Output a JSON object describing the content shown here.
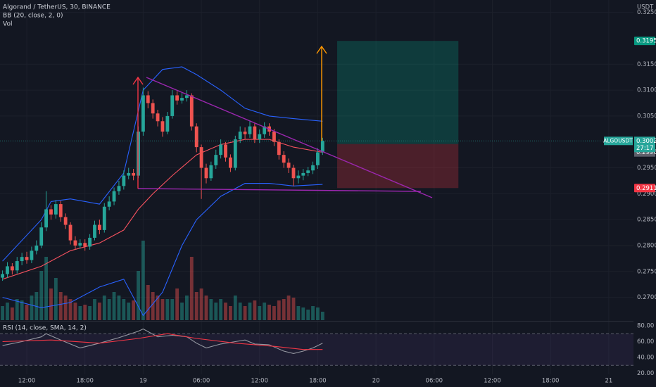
{
  "chart_data": [
    {
      "type": "candlestick",
      "title": "Algorand / TetherUS, 30, BINANCE",
      "indicators": [
        "BB (20, close, 2, 0)",
        "Vol"
      ],
      "y_label": "USDT",
      "x": [
        0,
        1,
        2,
        3,
        4,
        5,
        6,
        7,
        8,
        9,
        10,
        11,
        12,
        13,
        14,
        15,
        16,
        17,
        18,
        19,
        20,
        21,
        22,
        23,
        24,
        25,
        26,
        27,
        28,
        29,
        30,
        31,
        32,
        33,
        34,
        35,
        36,
        37,
        38,
        39,
        40,
        41,
        42,
        43,
        44,
        45,
        46,
        47,
        48,
        49,
        50,
        51,
        52,
        53,
        54,
        55,
        56,
        57,
        58,
        59,
        60,
        61,
        62,
        63,
        64,
        65,
        66
      ],
      "open": [
        0.2738,
        0.2745,
        0.276,
        0.2752,
        0.277,
        0.2778,
        0.2772,
        0.279,
        0.28,
        0.2835,
        0.287,
        0.286,
        0.288,
        0.2855,
        0.284,
        0.281,
        0.28,
        0.2805,
        0.2798,
        0.2815,
        0.284,
        0.283,
        0.2875,
        0.2885,
        0.2905,
        0.2915,
        0.2935,
        0.294,
        0.2935,
        0.302,
        0.309,
        0.3075,
        0.3055,
        0.304,
        0.302,
        0.305,
        0.309,
        0.308,
        0.3085,
        0.309,
        0.303,
        0.299,
        0.295,
        0.293,
        0.2955,
        0.2975,
        0.2995,
        0.297,
        0.295,
        0.3005,
        0.302,
        0.3015,
        0.303,
        0.3005,
        0.3015,
        0.303,
        0.302,
        0.3,
        0.2975,
        0.296,
        0.295,
        0.293,
        0.2935,
        0.294,
        0.2945,
        0.2955,
        0.298
      ],
      "high": [
        0.2752,
        0.2768,
        0.2766,
        0.2778,
        0.2786,
        0.2788,
        0.2798,
        0.281,
        0.2845,
        0.2905,
        0.2878,
        0.2888,
        0.2886,
        0.2862,
        0.2845,
        0.2818,
        0.2812,
        0.2812,
        0.2822,
        0.2848,
        0.285,
        0.2882,
        0.2895,
        0.2912,
        0.2925,
        0.2945,
        0.295,
        0.2948,
        0.303,
        0.3105,
        0.3098,
        0.3082,
        0.3062,
        0.3048,
        0.3058,
        0.31,
        0.3098,
        0.3095,
        0.31,
        0.3094,
        0.3036,
        0.2995,
        0.2958,
        0.2962,
        0.2985,
        0.3005,
        0.3,
        0.2976,
        0.3012,
        0.303,
        0.3028,
        0.304,
        0.3036,
        0.3024,
        0.3038,
        0.3036,
        0.3025,
        0.3005,
        0.2982,
        0.2968,
        0.2956,
        0.2945,
        0.2948,
        0.2952,
        0.2962,
        0.2988,
        0.3008
      ],
      "low": [
        0.2732,
        0.2738,
        0.2744,
        0.2746,
        0.2762,
        0.2765,
        0.2766,
        0.2783,
        0.2795,
        0.2828,
        0.285,
        0.2852,
        0.2846,
        0.2832,
        0.2802,
        0.2792,
        0.2794,
        0.279,
        0.2792,
        0.281,
        0.2822,
        0.2825,
        0.2868,
        0.2878,
        0.2898,
        0.2908,
        0.2928,
        0.2926,
        0.293,
        0.3012,
        0.3065,
        0.3045,
        0.303,
        0.301,
        0.3015,
        0.3045,
        0.3072,
        0.3074,
        0.3078,
        0.3022,
        0.298,
        0.289,
        0.292,
        0.2925,
        0.2948,
        0.2968,
        0.2962,
        0.2942,
        0.2945,
        0.2998,
        0.3006,
        0.3008,
        0.2998,
        0.2998,
        0.3008,
        0.3012,
        0.2992,
        0.2966,
        0.295,
        0.294,
        0.2915,
        0.292,
        0.2926,
        0.2934,
        0.2938,
        0.2948,
        0.2975
      ],
      "close": [
        0.2745,
        0.276,
        0.2752,
        0.277,
        0.2778,
        0.2772,
        0.279,
        0.28,
        0.2835,
        0.287,
        0.286,
        0.288,
        0.2855,
        0.284,
        0.281,
        0.28,
        0.2805,
        0.2798,
        0.2815,
        0.284,
        0.283,
        0.2875,
        0.2885,
        0.2905,
        0.2915,
        0.2935,
        0.294,
        0.2935,
        0.302,
        0.309,
        0.3075,
        0.3055,
        0.304,
        0.302,
        0.305,
        0.309,
        0.308,
        0.3085,
        0.309,
        0.303,
        0.299,
        0.295,
        0.293,
        0.2955,
        0.2975,
        0.2995,
        0.297,
        0.295,
        0.3005,
        0.302,
        0.3015,
        0.303,
        0.3005,
        0.3015,
        0.303,
        0.302,
        0.3,
        0.2975,
        0.296,
        0.295,
        0.293,
        0.2935,
        0.294,
        0.2945,
        0.2955,
        0.298,
        0.3002
      ],
      "volume": [
        20,
        25,
        18,
        30,
        28,
        22,
        35,
        40,
        70,
        90,
        45,
        60,
        40,
        35,
        30,
        25,
        20,
        22,
        20,
        30,
        25,
        35,
        30,
        40,
        35,
        30,
        25,
        28,
        70,
        113,
        50,
        40,
        35,
        30,
        30,
        30,
        45,
        25,
        35,
        90,
        40,
        45,
        35,
        30,
        25,
        30,
        25,
        20,
        35,
        25,
        20,
        25,
        28,
        20,
        25,
        22,
        20,
        28,
        30,
        35,
        32,
        20,
        18,
        15,
        20,
        18,
        12
      ],
      "vlim": [
        0,
        455
      ],
      "up_color": "#26a69a",
      "down_color": "#ef5350",
      "bands": [
        {
          "color": "#2962ff",
          "x": [
            0,
            8,
            10,
            14,
            20,
            25,
            29,
            33,
            37,
            40,
            45,
            50,
            55,
            60,
            66
          ],
          "values": [
            0.277,
            0.285,
            0.2885,
            0.289,
            0.288,
            0.294,
            0.31,
            0.314,
            0.3145,
            0.313,
            0.31,
            0.3065,
            0.305,
            0.3045,
            0.304
          ]
        },
        {
          "color": "#f7525f",
          "x": [
            0,
            8,
            14,
            20,
            25,
            28,
            31,
            35,
            40,
            45,
            50,
            55,
            60,
            66
          ],
          "values": [
            0.2735,
            0.276,
            0.279,
            0.2805,
            0.283,
            0.287,
            0.29,
            0.2935,
            0.2975,
            0.2995,
            0.3005,
            0.3005,
            0.299,
            0.298
          ]
        },
        {
          "color": "#2962ff",
          "x": [
            0,
            8,
            14,
            20,
            25,
            29,
            33,
            37,
            40,
            45,
            50,
            55,
            60,
            66
          ],
          "values": [
            0.27,
            0.268,
            0.269,
            0.272,
            0.2735,
            0.2665,
            0.271,
            0.28,
            0.285,
            0.2895,
            0.292,
            0.292,
            0.2915,
            0.2918
          ]
        }
      ],
      "position": {
        "start": 69,
        "end": 94,
        "target": 0.3195,
        "entry": 0.2996,
        "stop": 0.2911
      },
      "last_price": {
        "symbol": "ALGOUSDT",
        "value": 0.3002,
        "countdown": "27:17"
      },
      "xlim": [
        -0.52,
        130.1
      ],
      "ylim": [
        0.2656,
        0.3274
      ],
      "yticks": [
        {
          "value": 0.325,
          "label": "0.3250"
        },
        {
          "value": 0.315,
          "label": "0.3150"
        },
        {
          "value": 0.31,
          "label": "0.3100"
        },
        {
          "value": 0.305,
          "label": "0.3050"
        },
        {
          "value": 0.295,
          "label": "0.2950"
        },
        {
          "value": 0.29,
          "label": "0.2900"
        },
        {
          "value": 0.285,
          "label": "0.2850"
        },
        {
          "value": 0.28,
          "label": "0.2800"
        },
        {
          "value": 0.275,
          "label": "0.2750"
        },
        {
          "value": 0.27,
          "label": "0.2700"
        }
      ],
      "xticks": [
        {
          "value": 5,
          "label": "12:00"
        },
        {
          "value": 17,
          "label": "18:00"
        },
        {
          "value": 29,
          "label": "19"
        },
        {
          "value": 41,
          "label": "06:00"
        },
        {
          "value": 53,
          "label": "12:00"
        },
        {
          "value": 65,
          "label": "18:00"
        },
        {
          "value": 77,
          "label": "20"
        },
        {
          "value": 89,
          "label": "06:00"
        },
        {
          "value": 101,
          "label": "12:00"
        },
        {
          "value": 113,
          "label": "18:00"
        },
        {
          "value": 125,
          "label": "21"
        }
      ],
      "grid": true
    },
    {
      "type": "line",
      "title": "RSI (14, close, SMA, 14, 2)",
      "series": [
        {
          "color": "#9598a1",
          "x": [
            0,
            4,
            8,
            9,
            12,
            16,
            20,
            24,
            28,
            29,
            32,
            35,
            38,
            40,
            42,
            45,
            48,
            50,
            52,
            55,
            58,
            60,
            62,
            64,
            66
          ],
          "values": [
            55,
            60,
            66,
            70,
            62,
            52,
            58,
            65,
            73,
            76,
            66,
            68,
            66,
            58,
            52,
            57,
            60,
            62,
            57,
            56,
            48,
            45,
            48,
            52,
            58
          ]
        },
        {
          "color": "#f23645",
          "x": [
            0,
            10,
            20,
            28,
            34,
            40,
            48,
            56,
            62,
            66
          ],
          "values": [
            60,
            62,
            58,
            64,
            70,
            64,
            58,
            54,
            50,
            50
          ]
        }
      ],
      "levels": [
        70,
        30
      ],
      "ylim": [
        18.7,
        84.4
      ],
      "yticks": [
        {
          "value": 80,
          "label": "80.00"
        },
        {
          "value": 60,
          "label": "60.00"
        },
        {
          "value": 40,
          "label": "40.00"
        },
        {
          "value": 20,
          "label": "20.00"
        }
      ]
    }
  ]
}
